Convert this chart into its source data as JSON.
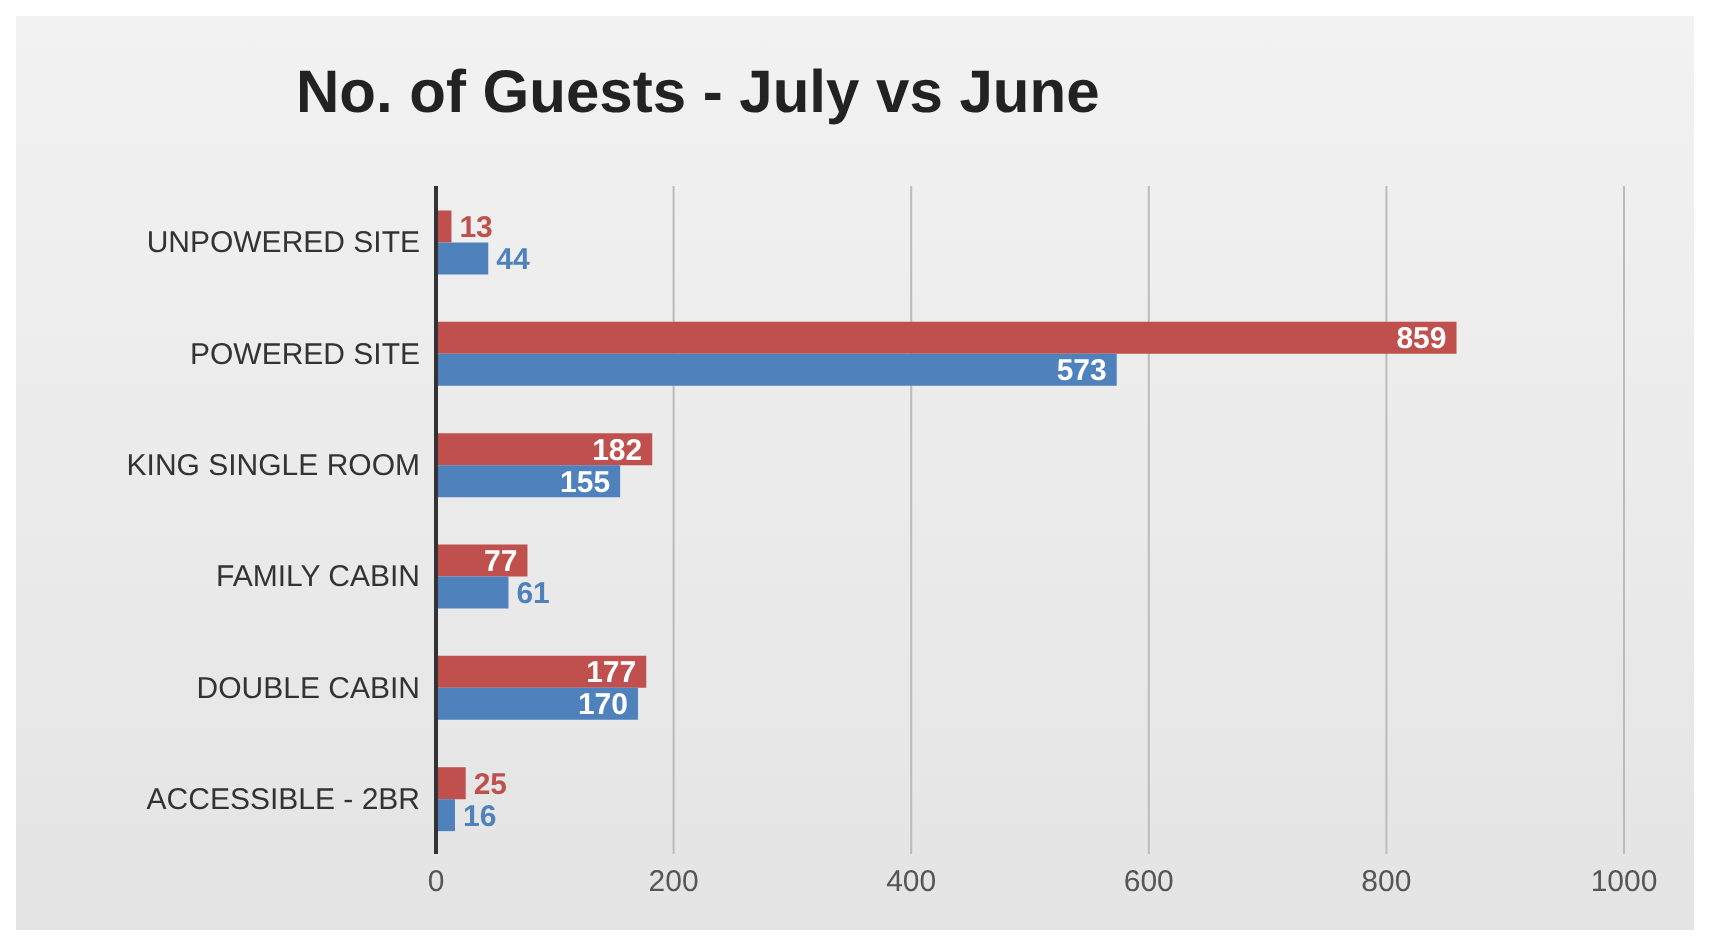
{
  "chart_data": {
    "type": "bar",
    "orientation": "horizontal",
    "title": "No. of Guests - July vs June",
    "categories": [
      "UNPOWERED SITE",
      "POWERED SITE",
      "KING SINGLE ROOM",
      "FAMILY CABIN",
      "DOUBLE CABIN",
      "ACCESSIBLE - 2BR"
    ],
    "series": [
      {
        "color": "#c0504d",
        "values": [
          13,
          859,
          182,
          77,
          177,
          25
        ]
      },
      {
        "color": "#4f81bd",
        "values": [
          44,
          573,
          155,
          61,
          170,
          16
        ]
      }
    ],
    "xlim": [
      0,
      1000
    ],
    "xticks": [
      0,
      200,
      400,
      600,
      800,
      1000
    ],
    "grid": "x",
    "data_labels": true
  }
}
